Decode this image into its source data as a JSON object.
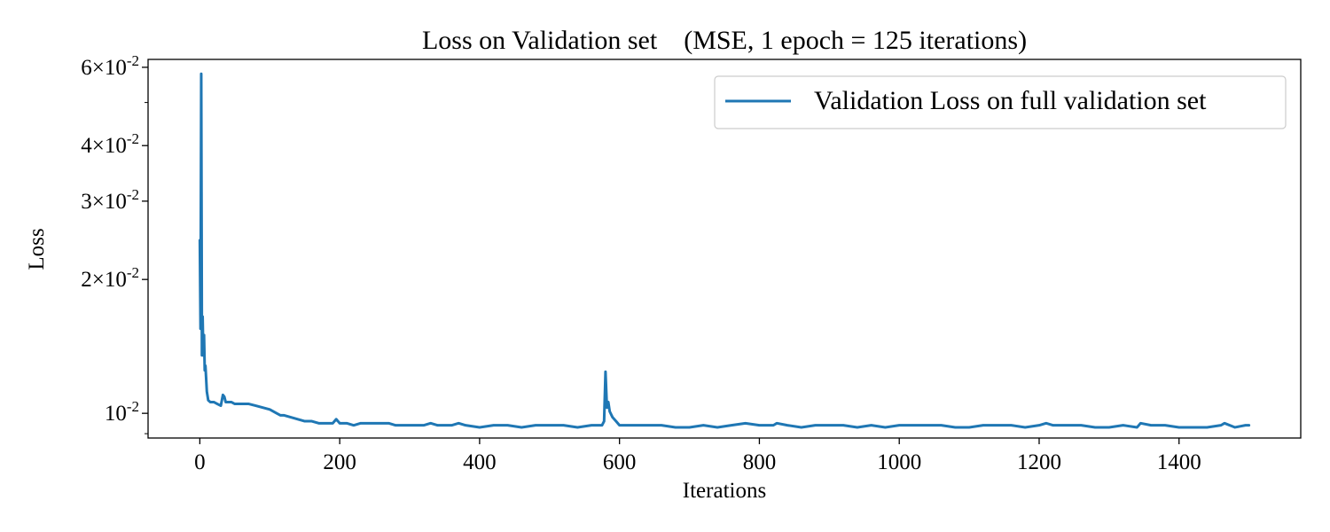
{
  "chart_data": {
    "type": "line",
    "title": "Loss on Validation set    (MSE, 1 epoch = 125 iterations)",
    "xlabel": "Iterations",
    "ylabel": "Loss",
    "yscale": "log",
    "xlim": [
      -74,
      1574
    ],
    "ylim": [
      0.0088,
      0.0625
    ],
    "x_ticks": [
      0,
      200,
      400,
      600,
      800,
      1000,
      1200,
      1400
    ],
    "x_tick_labels": [
      "0",
      "200",
      "400",
      "600",
      "800",
      "1000",
      "1200",
      "1400"
    ],
    "y_major_ticks": [
      {
        "value": 0.01,
        "base": "10",
        "exp": "-2"
      },
      {
        "value": 0.02,
        "base": "2×10",
        "exp": "-2"
      },
      {
        "value": 0.03,
        "base": "3×10",
        "exp": "-2"
      },
      {
        "value": 0.04,
        "base": "4×10",
        "exp": "-2"
      },
      {
        "value": 0.06,
        "base": "6×10",
        "exp": "-2"
      }
    ],
    "y_minor_ticks": [
      0.009,
      0.05
    ],
    "grid": false,
    "legend_position": "top-right",
    "series": [
      {
        "name": "Validation Loss on full validation set",
        "color": "#1f77b4",
        "x": [
          0,
          1,
          2,
          3,
          4,
          5,
          6,
          7,
          8,
          9,
          10,
          12,
          15,
          20,
          25,
          30,
          33,
          35,
          37,
          40,
          45,
          50,
          60,
          70,
          80,
          90,
          100,
          110,
          115,
          120,
          130,
          140,
          150,
          160,
          170,
          180,
          190,
          195,
          200,
          210,
          220,
          230,
          240,
          250,
          260,
          270,
          280,
          290,
          300,
          320,
          330,
          340,
          360,
          370,
          380,
          400,
          420,
          440,
          460,
          480,
          500,
          520,
          540,
          560,
          575,
          578,
          580,
          582,
          584,
          586,
          590,
          595,
          600,
          610,
          620,
          640,
          660,
          680,
          700,
          720,
          740,
          760,
          780,
          800,
          820,
          825,
          840,
          860,
          880,
          900,
          920,
          940,
          960,
          980,
          1000,
          1020,
          1040,
          1060,
          1080,
          1100,
          1120,
          1140,
          1160,
          1180,
          1200,
          1210,
          1220,
          1240,
          1260,
          1280,
          1300,
          1320,
          1340,
          1345,
          1360,
          1380,
          1400,
          1420,
          1440,
          1460,
          1465,
          1480,
          1495,
          1500
        ],
        "y": [
          0.0245,
          0.0155,
          0.058,
          0.0135,
          0.0165,
          0.0135,
          0.015,
          0.0125,
          0.0128,
          0.012,
          0.0112,
          0.0107,
          0.0106,
          0.0106,
          0.0105,
          0.0104,
          0.011,
          0.0109,
          0.0106,
          0.0106,
          0.0106,
          0.0105,
          0.0105,
          0.0105,
          0.0104,
          0.0103,
          0.0102,
          0.01,
          0.0099,
          0.0099,
          0.0098,
          0.0097,
          0.0096,
          0.0096,
          0.0095,
          0.0095,
          0.0095,
          0.0097,
          0.0095,
          0.0095,
          0.0094,
          0.0095,
          0.0095,
          0.0095,
          0.0095,
          0.0095,
          0.0094,
          0.0094,
          0.0094,
          0.0094,
          0.0095,
          0.0094,
          0.0094,
          0.0095,
          0.0094,
          0.0093,
          0.0094,
          0.0094,
          0.0093,
          0.0094,
          0.0094,
          0.0094,
          0.0093,
          0.0094,
          0.0094,
          0.0096,
          0.0124,
          0.0103,
          0.0106,
          0.0101,
          0.0098,
          0.0096,
          0.0094,
          0.0094,
          0.0094,
          0.0094,
          0.0094,
          0.0093,
          0.0093,
          0.0094,
          0.0093,
          0.0094,
          0.0095,
          0.0094,
          0.0094,
          0.0095,
          0.0094,
          0.0093,
          0.0094,
          0.0094,
          0.0094,
          0.0093,
          0.0094,
          0.0093,
          0.0094,
          0.0094,
          0.0094,
          0.0094,
          0.0093,
          0.0093,
          0.0094,
          0.0094,
          0.0094,
          0.0093,
          0.0094,
          0.0095,
          0.0094,
          0.0094,
          0.0094,
          0.0093,
          0.0093,
          0.0094,
          0.0093,
          0.0095,
          0.0094,
          0.0094,
          0.0093,
          0.0093,
          0.0093,
          0.0094,
          0.0095,
          0.0093,
          0.0094,
          0.0094
        ]
      }
    ]
  }
}
